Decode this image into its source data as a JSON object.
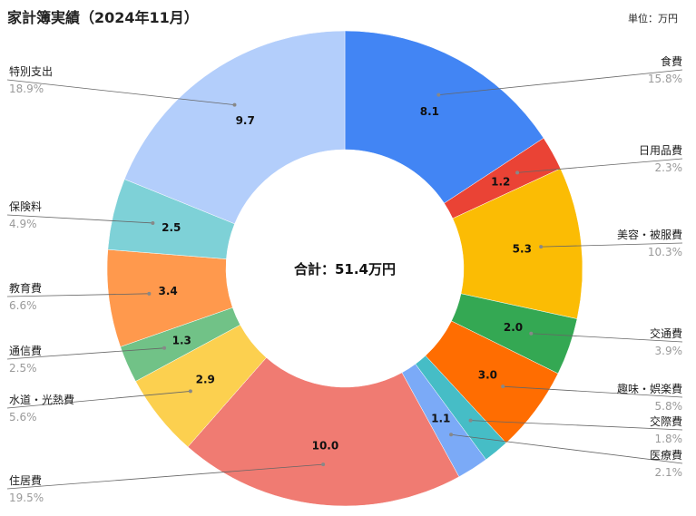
{
  "chart_data": {
    "type": "pie",
    "title": "家計簿実績（2024年11月）",
    "unit_label": "単位：万円",
    "center_label": "合計：51.4万円",
    "slices": [
      {
        "label": "食費",
        "value": 8.1,
        "value_label": "8.1",
        "percent": "15.8%",
        "color": "#4285F4"
      },
      {
        "label": "日用品費",
        "value": 1.2,
        "value_label": "1.2",
        "percent": "2.3%",
        "color": "#EA4335"
      },
      {
        "label": "美容・被服費",
        "value": 5.3,
        "value_label": "5.3",
        "percent": "10.3%",
        "color": "#FBBC04"
      },
      {
        "label": "交通費",
        "value": 2.0,
        "value_label": "2.0",
        "percent": "3.9%",
        "color": "#34A853"
      },
      {
        "label": "趣味・娯楽費",
        "value": 3.0,
        "value_label": "3.0",
        "percent": "5.8%",
        "color": "#FF6D01"
      },
      {
        "label": "交際費",
        "value": 0.9,
        "value_label": "",
        "percent": "1.8%",
        "color": "#46BDC6"
      },
      {
        "label": "医療費",
        "value": 1.1,
        "value_label": "1.1",
        "percent": "2.1%",
        "color": "#7BAAF7"
      },
      {
        "label": "住居費",
        "value": 10.0,
        "value_label": "10.0",
        "percent": "19.5%",
        "color": "#F07B72"
      },
      {
        "label": "水道・光熱費",
        "value": 2.9,
        "value_label": "2.9",
        "percent": "5.6%",
        "color": "#FCD04F"
      },
      {
        "label": "通信費",
        "value": 1.3,
        "value_label": "1.3",
        "percent": "2.5%",
        "color": "#71C287"
      },
      {
        "label": "教育費",
        "value": 3.4,
        "value_label": "3.4",
        "percent": "6.6%",
        "color": "#FF994D"
      },
      {
        "label": "保険料",
        "value": 2.5,
        "value_label": "2.5",
        "percent": "4.9%",
        "color": "#7ED1D7"
      },
      {
        "label": "特別支出",
        "value": 9.7,
        "value_label": "9.7",
        "percent": "18.9%",
        "color": "#B3CEFB"
      }
    ]
  }
}
